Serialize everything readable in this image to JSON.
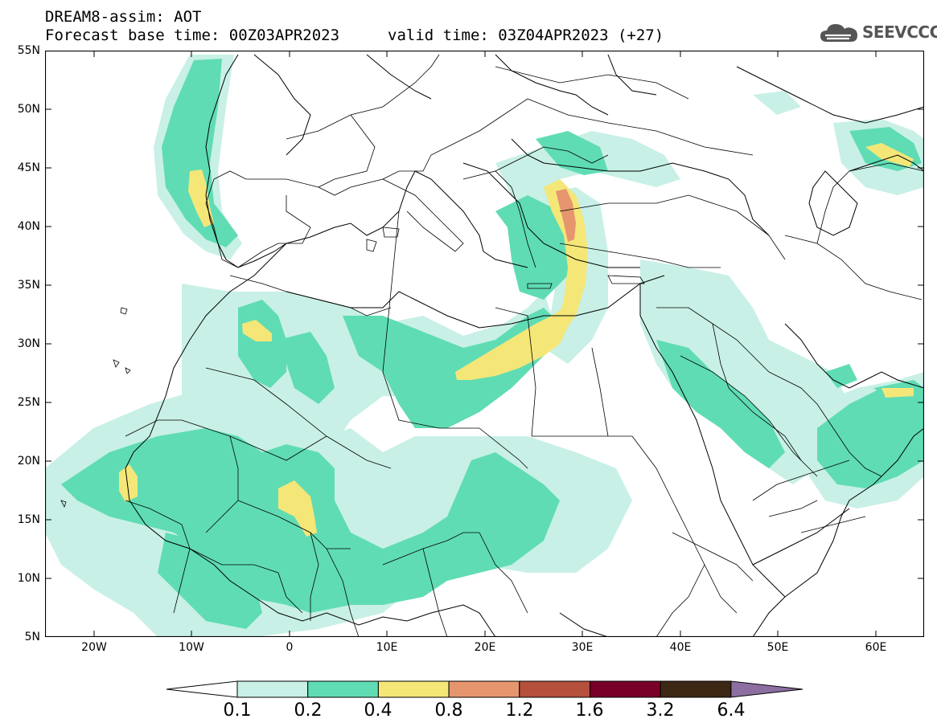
{
  "header": {
    "line1": "DREAM8-assim: AOT",
    "line2": "Forecast base time: 00Z03APR2023",
    "line3": "valid time: 03Z04APR2023 (+27)"
  },
  "logo": {
    "text": "SEEVCCC"
  },
  "map": {
    "lon_range": [
      -25,
      65
    ],
    "lat_range": [
      5,
      55
    ],
    "y_ticks": [
      "55N",
      "50N",
      "45N",
      "40N",
      "35N",
      "30N",
      "25N",
      "20N",
      "15N",
      "10N",
      "5N"
    ],
    "x_ticks": [
      "20W",
      "10W",
      "0",
      "10E",
      "20E",
      "30E",
      "40E",
      "50E",
      "60E"
    ]
  },
  "colorbar": {
    "labels": [
      "0.1",
      "0.2",
      "0.4",
      "0.8",
      "1.2",
      "1.6",
      "3.2",
      "6.4"
    ],
    "colors": [
      "#ffffff",
      "#c8f0e6",
      "#5fdcb4",
      "#f5e678",
      "#e6966e",
      "#b4503c",
      "#780028",
      "#3c2814",
      "#8c6ea0"
    ]
  }
}
